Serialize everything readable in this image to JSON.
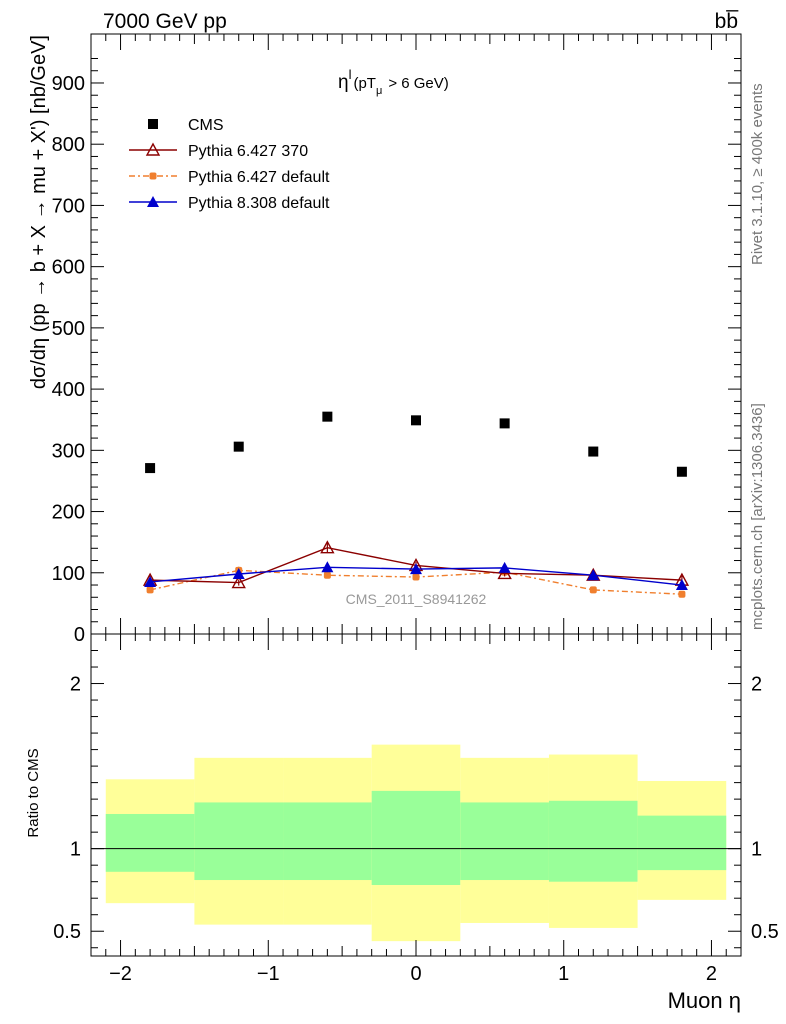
{
  "header": {
    "energy_label": "7000 GeV pp",
    "process_label": "bb̅"
  },
  "right_labels": {
    "rivet": "Rivet 3.1.10, ≥ 400k events",
    "source": "mcplots.cern.ch [arXiv:1306.3436]"
  },
  "watermark": "CMS_2011_S8941262",
  "cut_label": {
    "main": "η",
    "sup": "l",
    "paren_open": "(pT",
    "sub": "μ",
    "rest": ">  6 GeV)"
  },
  "chart_data": [
    {
      "type": "scatter",
      "title": "",
      "xlabel": "Muon η",
      "ylabel": "dσ/dη (pp → b + X → mu + X') [nb/GeV]",
      "xlim": [
        -2.2,
        2.2
      ],
      "ylim": [
        0,
        980
      ],
      "yticks": [
        0,
        100,
        200,
        300,
        400,
        500,
        600,
        700,
        800,
        900
      ],
      "ytick_labels": [
        "0",
        "100",
        "200",
        "300",
        "400",
        "500",
        "600",
        "700",
        "800",
        "900"
      ],
      "x": [
        -1.8,
        -1.2,
        -0.6,
        0.0,
        0.6,
        1.2,
        1.8
      ],
      "series": [
        {
          "name": "CMS",
          "color": "#000000",
          "marker": "square",
          "values": [
            271,
            306,
            355,
            349,
            344,
            298,
            265
          ]
        },
        {
          "name": "Pythia 6.427 370",
          "color": "#8b0000",
          "marker": "open-triangle",
          "line": "solid",
          "values": [
            88,
            84,
            141,
            112,
            99,
            96,
            88
          ],
          "errors": [
            7,
            5,
            8,
            6,
            5,
            6,
            7
          ]
        },
        {
          "name": "Pythia 6.427 default",
          "color": "#f07f2e",
          "marker": "circle",
          "line": "dashdot",
          "values": [
            72,
            104,
            96,
            93,
            101,
            72,
            65
          ],
          "errors": [
            5,
            6,
            5,
            5,
            5,
            5,
            5
          ]
        },
        {
          "name": "Pythia 8.308 default",
          "color": "#0000cc",
          "marker": "triangle",
          "line": "solid",
          "values": [
            85,
            98,
            109,
            106,
            108,
            96,
            80
          ],
          "errors": [
            3,
            3,
            3,
            3,
            3,
            3,
            3
          ]
        }
      ]
    },
    {
      "type": "bar",
      "title": "",
      "xlabel": "Muon η",
      "ylabel": "Ratio to CMS",
      "xlim": [
        -2.2,
        2.2
      ],
      "ylim": [
        0.35,
        2.3
      ],
      "yticks": [
        0.5,
        1,
        2
      ],
      "ytick_labels": [
        "0.5",
        "1",
        "2"
      ],
      "xticks": [
        -2,
        -1,
        0,
        1,
        2
      ],
      "xtick_labels": [
        "−2",
        "−1",
        "0",
        "1",
        "2"
      ],
      "bin_edges": [
        -2.1,
        -1.5,
        -0.9,
        -0.3,
        0.3,
        0.9,
        1.5,
        2.1
      ],
      "band_outer_color": "#ffff99",
      "band_inner_color": "#99ff99",
      "outer_band_low": [
        0.67,
        0.54,
        0.54,
        0.44,
        0.55,
        0.52,
        0.69
      ],
      "outer_band_high": [
        1.42,
        1.55,
        1.55,
        1.63,
        1.55,
        1.57,
        1.41
      ],
      "inner_band_low": [
        0.86,
        0.81,
        0.81,
        0.78,
        0.81,
        0.8,
        0.87
      ],
      "inner_band_high": [
        1.21,
        1.28,
        1.28,
        1.35,
        1.28,
        1.29,
        1.2
      ],
      "reference_line": 1
    }
  ]
}
